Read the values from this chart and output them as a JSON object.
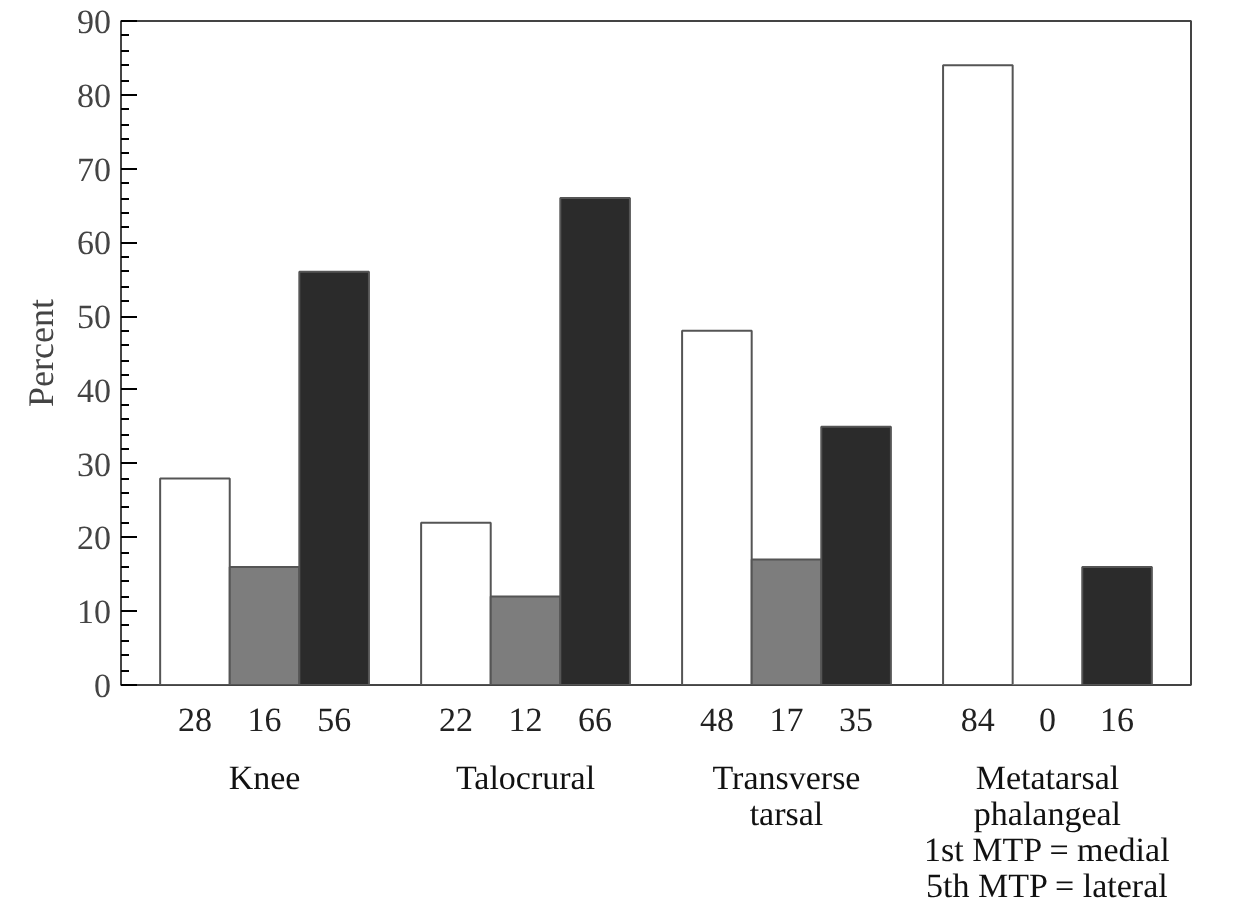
{
  "chart_data": {
    "type": "bar",
    "ylabel": "Percent",
    "categories": [
      "Knee",
      "Talocrural",
      "Transverse\ntarsal",
      "Metatarsal\nphalangeal\n1st MTP = medial\n5th MTP = lateral"
    ],
    "series": [
      {
        "color": "#ffffff",
        "values": [
          28,
          22,
          48,
          84
        ]
      },
      {
        "color": "#7d7d7d",
        "values": [
          16,
          12,
          17,
          0
        ]
      },
      {
        "color": "#2b2b2b",
        "values": [
          56,
          66,
          35,
          16
        ]
      }
    ],
    "ylim": [
      0,
      90
    ],
    "yticks": [
      0,
      10,
      20,
      30,
      40,
      50,
      60,
      70,
      80,
      90
    ],
    "data_labels": true,
    "grid": false
  }
}
